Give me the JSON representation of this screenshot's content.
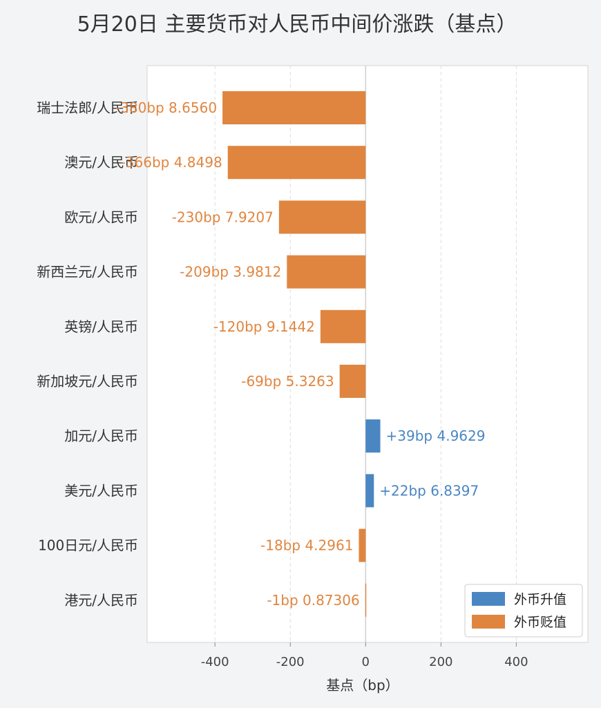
{
  "chart_data": {
    "type": "bar",
    "orientation": "horizontal",
    "title": "5月20日 主要货币对人民币中间价涨跌（基点）",
    "xlabel": "基点（bp）",
    "ylabel": "",
    "xlim": [
      -580,
      590
    ],
    "xticks": [
      -400,
      -200,
      0,
      200,
      400
    ],
    "xtick_labels": [
      "-400",
      "-200",
      "0",
      "200",
      "400"
    ],
    "grid": "vertical-dashed",
    "legend_position": "bottom-right",
    "colors": {
      "up": "#4a86c2",
      "down": "#e0853f"
    },
    "legend": [
      {
        "key": "up",
        "label": "外币升值"
      },
      {
        "key": "down",
        "label": "外币贬值"
      }
    ],
    "categories": [
      "瑞士法郎/人民币",
      "澳元/人民币",
      "欧元/人民币",
      "新西兰元/人民币",
      "英镑/人民币",
      "新加坡元/人民币",
      "加元/人民币",
      "美元/人民币",
      "100日元/人民币",
      "港元/人民币"
    ],
    "values": [
      -380,
      -366,
      -230,
      -209,
      -120,
      -69,
      39,
      22,
      -18,
      -1
    ],
    "labels": [
      "-380bp  8.6560",
      "-366bp  4.8498",
      "-230bp  7.9207",
      "-209bp  3.9812",
      "-120bp  9.1442",
      "-69bp  5.3263",
      "+39bp  4.9629",
      "+22bp  6.8397",
      "-18bp  4.2961",
      "-1bp  0.87306"
    ]
  }
}
